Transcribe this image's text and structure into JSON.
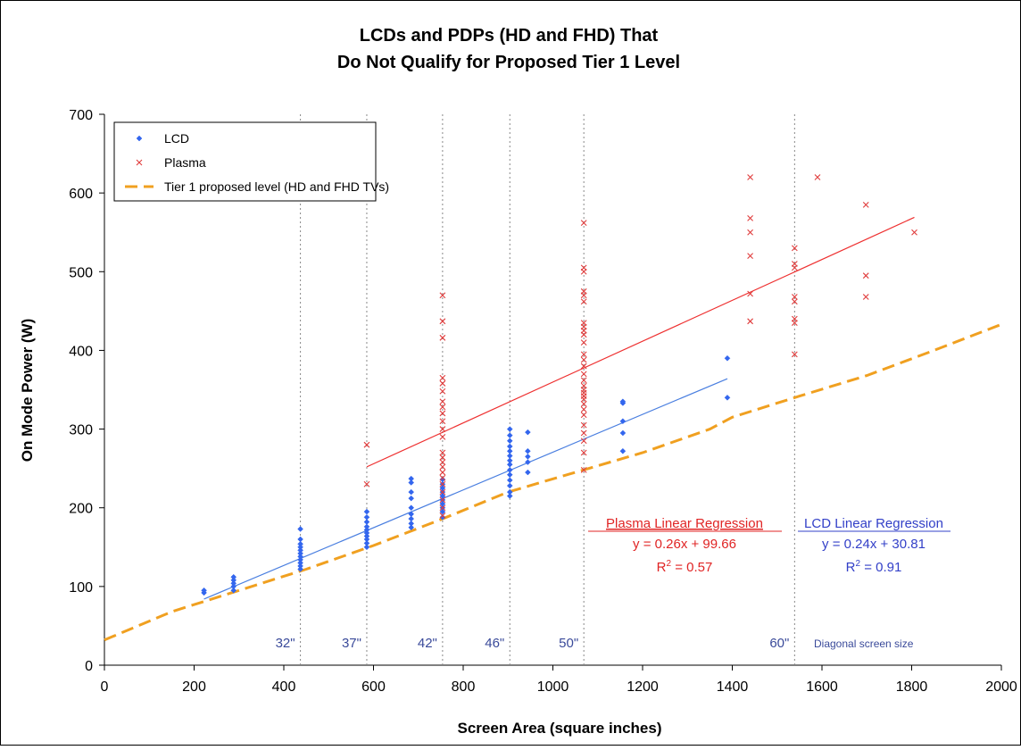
{
  "colors": {
    "lcd": "#3366ee",
    "plasma": "#e03c3c",
    "tier1": "#f0a020",
    "lcd_fit": "#4a7fe0",
    "plasma_fit": "#ee3030"
  },
  "chart_data": {
    "type": "scatter",
    "title": "LCDs and PDPs (HD and FHD) That",
    "subtitle": "Do Not Qualify for Proposed Tier 1 Level",
    "xlabel": "Screen Area (square inches)",
    "ylabel": "On Mode Power (W)",
    "xlim": [
      0,
      2000
    ],
    "ylim": [
      0,
      700
    ],
    "x_ticks": [
      0,
      200,
      400,
      600,
      800,
      1000,
      1200,
      1400,
      1600,
      1800,
      2000
    ],
    "y_ticks": [
      0,
      100,
      200,
      300,
      400,
      500,
      600,
      700
    ],
    "x_tick_labels": [
      "0",
      "200",
      "400",
      "600",
      "800",
      "1000",
      "1200",
      "1400",
      "1600",
      "1800",
      "2000"
    ],
    "y_tick_labels": [
      "0",
      "100",
      "200",
      "300",
      "400",
      "500",
      "600",
      "700"
    ],
    "legend": {
      "position": "top-left",
      "entries": [
        "LCD",
        "Plasma",
        "Tier 1 proposed level (HD and FHD TVs)"
      ]
    },
    "screen_sizes": [
      {
        "label": "32\"",
        "x": 437
      },
      {
        "label": "37\"",
        "x": 585
      },
      {
        "label": "42\"",
        "x": 754
      },
      {
        "label": "46\"",
        "x": 904
      },
      {
        "label": "50\"",
        "x": 1069
      },
      {
        "label": "60\"",
        "x": 1539
      }
    ],
    "screen_size_note": "Diagonal screen size",
    "series": [
      {
        "name": "LCD",
        "marker": "diamond",
        "points": [
          [
            222,
            92
          ],
          [
            222,
            95
          ],
          [
            288,
            95
          ],
          [
            288,
            100
          ],
          [
            288,
            104
          ],
          [
            288,
            108
          ],
          [
            288,
            112
          ],
          [
            437,
            122
          ],
          [
            437,
            126
          ],
          [
            437,
            130
          ],
          [
            437,
            134
          ],
          [
            437,
            138
          ],
          [
            437,
            142
          ],
          [
            437,
            146
          ],
          [
            437,
            150
          ],
          [
            437,
            154
          ],
          [
            437,
            160
          ],
          [
            437,
            173
          ],
          [
            585,
            150
          ],
          [
            585,
            155
          ],
          [
            585,
            160
          ],
          [
            585,
            164
          ],
          [
            585,
            168
          ],
          [
            585,
            172
          ],
          [
            585,
            176
          ],
          [
            585,
            182
          ],
          [
            585,
            188
          ],
          [
            585,
            195
          ],
          [
            684,
            175
          ],
          [
            684,
            180
          ],
          [
            684,
            186
          ],
          [
            684,
            192
          ],
          [
            684,
            200
          ],
          [
            684,
            212
          ],
          [
            684,
            220
          ],
          [
            684,
            232
          ],
          [
            684,
            237
          ],
          [
            754,
            188
          ],
          [
            754,
            195
          ],
          [
            754,
            200
          ],
          [
            754,
            205
          ],
          [
            754,
            210
          ],
          [
            754,
            215
          ],
          [
            754,
            220
          ],
          [
            754,
            225
          ],
          [
            754,
            230
          ],
          [
            754,
            236
          ],
          [
            904,
            215
          ],
          [
            904,
            220
          ],
          [
            904,
            228
          ],
          [
            904,
            235
          ],
          [
            904,
            242
          ],
          [
            904,
            248
          ],
          [
            904,
            255
          ],
          [
            904,
            260
          ],
          [
            904,
            266
          ],
          [
            904,
            272
          ],
          [
            904,
            278
          ],
          [
            904,
            285
          ],
          [
            904,
            292
          ],
          [
            904,
            300
          ],
          [
            944,
            245
          ],
          [
            944,
            258
          ],
          [
            944,
            265
          ],
          [
            944,
            272
          ],
          [
            944,
            296
          ],
          [
            1156,
            272
          ],
          [
            1156,
            295
          ],
          [
            1156,
            310
          ],
          [
            1156,
            333
          ],
          [
            1156,
            335
          ],
          [
            1389,
            340
          ],
          [
            1389,
            390
          ]
        ]
      },
      {
        "name": "Plasma",
        "marker": "x",
        "points": [
          [
            585,
            230
          ],
          [
            585,
            280
          ],
          [
            754,
            190
          ],
          [
            754,
            200
          ],
          [
            754,
            210
          ],
          [
            754,
            220
          ],
          [
            754,
            230
          ],
          [
            754,
            238
          ],
          [
            754,
            245
          ],
          [
            754,
            252
          ],
          [
            754,
            258
          ],
          [
            754,
            264
          ],
          [
            754,
            270
          ],
          [
            754,
            290
          ],
          [
            754,
            300
          ],
          [
            754,
            310
          ],
          [
            754,
            320
          ],
          [
            754,
            328
          ],
          [
            754,
            335
          ],
          [
            754,
            348
          ],
          [
            754,
            358
          ],
          [
            754,
            365
          ],
          [
            754,
            416
          ],
          [
            754,
            437
          ],
          [
            754,
            470
          ],
          [
            1069,
            248
          ],
          [
            1069,
            270
          ],
          [
            1069,
            285
          ],
          [
            1069,
            295
          ],
          [
            1069,
            305
          ],
          [
            1069,
            318
          ],
          [
            1069,
            325
          ],
          [
            1069,
            332
          ],
          [
            1069,
            338
          ],
          [
            1069,
            342
          ],
          [
            1069,
            346
          ],
          [
            1069,
            350
          ],
          [
            1069,
            355
          ],
          [
            1069,
            362
          ],
          [
            1069,
            370
          ],
          [
            1069,
            380
          ],
          [
            1069,
            388
          ],
          [
            1069,
            395
          ],
          [
            1069,
            410
          ],
          [
            1069,
            420
          ],
          [
            1069,
            425
          ],
          [
            1069,
            430
          ],
          [
            1069,
            435
          ],
          [
            1069,
            462
          ],
          [
            1069,
            470
          ],
          [
            1069,
            475
          ],
          [
            1069,
            500
          ],
          [
            1069,
            505
          ],
          [
            1069,
            562
          ],
          [
            1440,
            437
          ],
          [
            1440,
            472
          ],
          [
            1440,
            520
          ],
          [
            1440,
            550
          ],
          [
            1440,
            568
          ],
          [
            1440,
            620
          ],
          [
            1539,
            395
          ],
          [
            1539,
            435
          ],
          [
            1539,
            440
          ],
          [
            1539,
            462
          ],
          [
            1539,
            468
          ],
          [
            1539,
            505
          ],
          [
            1539,
            510
          ],
          [
            1539,
            530
          ],
          [
            1590,
            620
          ],
          [
            1698,
            468
          ],
          [
            1698,
            495
          ],
          [
            1698,
            585
          ],
          [
            1806,
            550
          ]
        ]
      },
      {
        "name": "Tier 1 proposed level (HD and FHD TVs)",
        "type": "line",
        "style": "dashed",
        "points": [
          [
            0,
            32
          ],
          [
            150,
            68
          ],
          [
            300,
            95
          ],
          [
            450,
            122
          ],
          [
            600,
            152
          ],
          [
            750,
            185
          ],
          [
            900,
            220
          ],
          [
            1050,
            245
          ],
          [
            1200,
            270
          ],
          [
            1350,
            300
          ],
          [
            1400,
            315
          ],
          [
            1550,
            342
          ],
          [
            1700,
            368
          ],
          [
            1850,
            400
          ],
          [
            2000,
            433
          ]
        ]
      },
      {
        "name": "LCD Linear Regression",
        "type": "line",
        "points": [
          [
            222,
            84
          ],
          [
            1389,
            364
          ]
        ]
      },
      {
        "name": "Plasma Linear Regression",
        "type": "line",
        "points": [
          [
            585,
            252
          ],
          [
            1806,
            569
          ]
        ]
      }
    ],
    "annotations": {
      "plasma_reg": {
        "title": "Plasma Linear Regression",
        "equation": "y = 0.26x + 99.66",
        "r2_prefix": "R",
        "r2_exp": "2",
        "r2_value": " = 0.57"
      },
      "lcd_reg": {
        "title": "LCD Linear Regression",
        "equation": "y = 0.24x + 30.81",
        "r2_prefix": "R",
        "r2_exp": "2",
        "r2_value": " = 0.91"
      }
    }
  }
}
